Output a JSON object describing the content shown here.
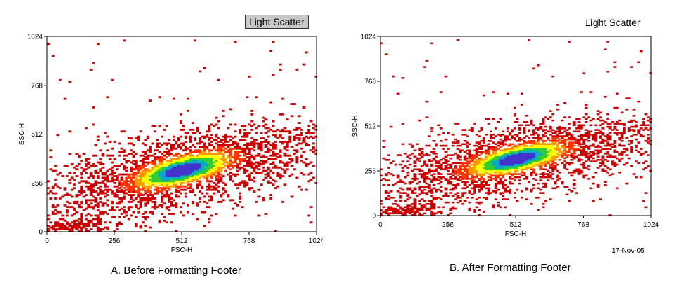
{
  "chart_data": [
    {
      "type": "heatmap",
      "subtype": "density-scatter",
      "title": "Light Scatter",
      "title_style": "boxed",
      "xlabel": "FSC-H",
      "ylabel": "SSC-H",
      "xlim": [
        0,
        1024
      ],
      "ylim": [
        0,
        1024
      ],
      "xticks": [
        "0",
        "256",
        "512",
        "768",
        "1024"
      ],
      "yticks": [
        "0",
        "256",
        "512",
        "768",
        "1024"
      ],
      "density_peak": {
        "x": 512,
        "y": 320
      },
      "footer": "",
      "caption": "A. Before Formatting Footer"
    },
    {
      "type": "heatmap",
      "subtype": "density-scatter",
      "title": "Light Scatter",
      "title_style": "plain",
      "xlabel": "FSC-H",
      "ylabel": "SSC-H",
      "xlim": [
        0,
        1024
      ],
      "ylim": [
        0,
        1024
      ],
      "xticks": [
        "0",
        "256",
        "512",
        "768",
        "1024"
      ],
      "yticks": [
        "0",
        "256",
        "512",
        "768",
        "1024"
      ],
      "density_peak": {
        "x": 512,
        "y": 320
      },
      "footer": "17-Nov-05",
      "caption": "B. After Formatting Footer"
    }
  ],
  "colors": {
    "low": "#cc0000",
    "midlow": "#ff3300",
    "mid": "#ff9900",
    "midhigh": "#ffff00",
    "high": "#33cc33",
    "higher": "#00aacc",
    "peak": "#4433cc"
  }
}
